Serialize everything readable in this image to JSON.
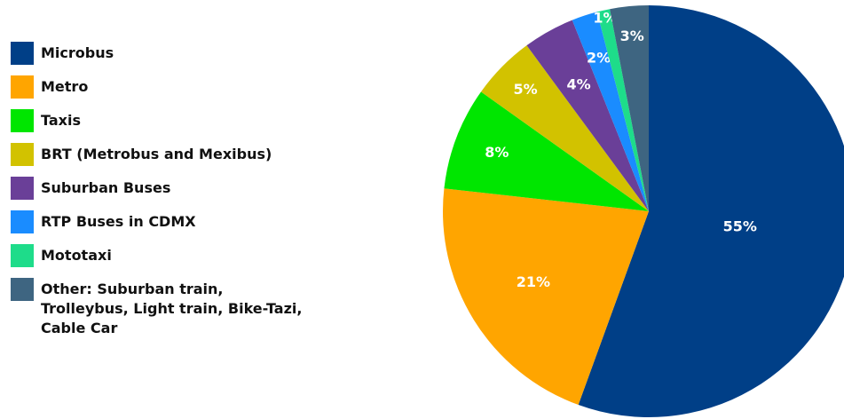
{
  "chart_data": {
    "type": "pie",
    "categories": [
      "Microbus",
      "Metro",
      "Taxis",
      "BRT (Metrobus and Mexibus)",
      "Suburban Buses",
      "RTP Buses in CDMX",
      "Mototaxi",
      "Other: Suburban train, Trolleybus, Light train, Bike-Tazi, Cable Car"
    ],
    "values": [
      55,
      21,
      8,
      5,
      4,
      2,
      1,
      3
    ],
    "value_labels": [
      "55%",
      "21%",
      "8%",
      "5%",
      "4%",
      "2%",
      "1%",
      "3%"
    ],
    "colors": [
      "#003f87",
      "#ffa500",
      "#00e600",
      "#d2c200",
      "#6a3f98",
      "#1a8cff",
      "#1edc8a",
      "#3e6581"
    ]
  }
}
